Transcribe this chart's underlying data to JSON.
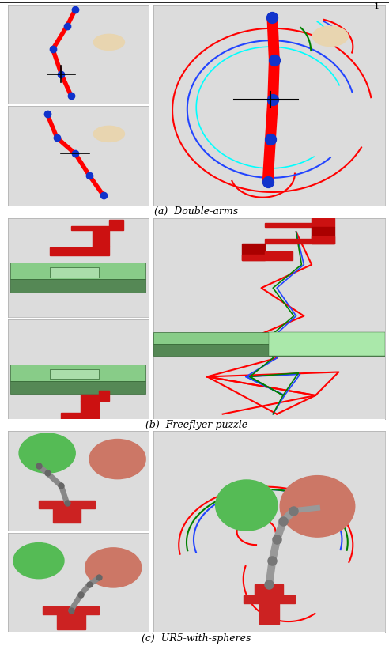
{
  "captions": [
    "(a)  Double-arms",
    "(b)  Freeflyer-puzzle",
    "(c)  UR5-with-spheres"
  ],
  "background_color": "#ffffff",
  "panel_bg": "#dcdcdc",
  "figure_width": 4.92,
  "figure_height": 8.17,
  "caption_fontsize": 9,
  "page_num": "1"
}
